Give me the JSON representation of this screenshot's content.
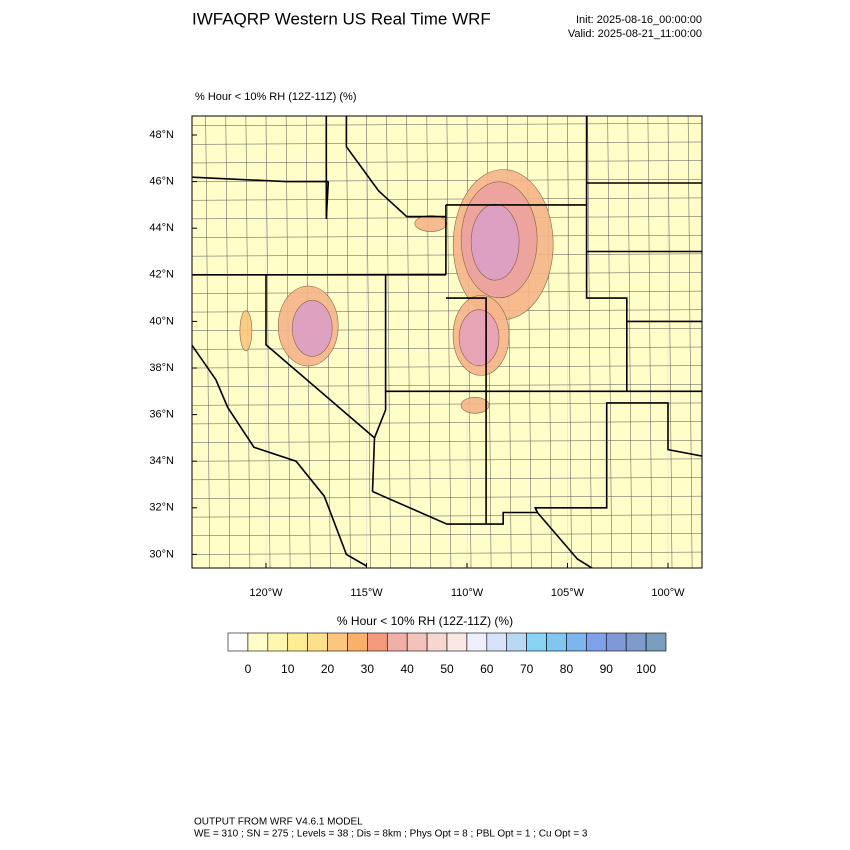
{
  "header": {
    "title": "IWFAQRP Western US Real Time WRF",
    "init": "Init: 2025-08-16_00:00:00",
    "valid": "Valid: 2025-08-21_11:00:00"
  },
  "map": {
    "subtitle": "% Hour < 10% RH (12Z-11Z)   (%)",
    "lat_ticks": [
      {
        "value": 48,
        "label": "48°N"
      },
      {
        "value": 46,
        "label": "46°N"
      },
      {
        "value": 44,
        "label": "44°N"
      },
      {
        "value": 42,
        "label": "42°N"
      },
      {
        "value": 40,
        "label": "40°N"
      },
      {
        "value": 38,
        "label": "38°N"
      },
      {
        "value": 36,
        "label": "36°N"
      },
      {
        "value": 34,
        "label": "34°N"
      },
      {
        "value": 32,
        "label": "32°N"
      },
      {
        "value": 30,
        "label": "30°N"
      }
    ],
    "lon_ticks": [
      {
        "value": -120,
        "label": "120°W"
      },
      {
        "value": -115,
        "label": "115°W"
      },
      {
        "value": -110,
        "label": "110°W"
      },
      {
        "value": -105,
        "label": "105°W"
      },
      {
        "value": -100,
        "label": "100°W"
      }
    ]
  },
  "colorbar": {
    "title": "% Hour < 10% RH (12Z-11Z)  (%)",
    "colors": [
      "#ffffff",
      "#fffdc8",
      "#fff7b0",
      "#ffed95",
      "#fde08a",
      "#fbc77e",
      "#f9b06a",
      "#f39a7c",
      "#f0b0a8",
      "#f3c2bb",
      "#f7d6d0",
      "#fbe8e4",
      "#eeeeff",
      "#d6e3f8",
      "#b8d8f3",
      "#88d4f7",
      "#7fc6f3",
      "#7cb5ef",
      "#7ea1ea",
      "#7f98d8",
      "#7e9bcb",
      "#7a9cbd"
    ],
    "ticks": [
      0,
      10,
      20,
      30,
      40,
      50,
      60,
      70,
      80,
      90,
      100
    ]
  },
  "footer": {
    "line1": "OUTPUT FROM WRF V4.6.1 MODEL",
    "line2": "WE = 310 ; SN = 275 ; Levels = 38 ; Dis = 8km ; Phys Opt = 8 ; PBL Opt = 1 ; Cu Opt = 3"
  }
}
